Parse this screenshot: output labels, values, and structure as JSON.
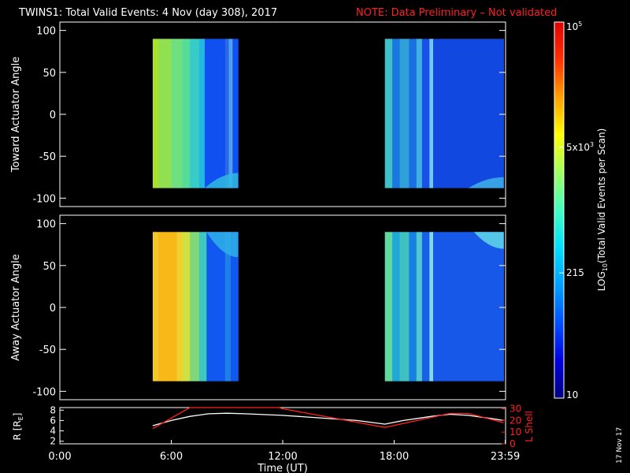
{
  "title": {
    "main": "TWINS1: Total Valid Events:  4 Nov (day 308), 2017",
    "note": "NOTE: Data Preliminary – Not validated",
    "note_color": "#ff2020"
  },
  "date_stamp": "17 Nov 17",
  "chart_data": [
    {
      "type": "heatmap",
      "ylabel": "Toward Actuator Angle",
      "ylim": [
        -110,
        110
      ],
      "yticks": [
        100,
        50,
        0,
        -50,
        -100
      ],
      "x_hours_lim": [
        0,
        24
      ],
      "y_range_data": [
        -88,
        90
      ],
      "blocks": [
        {
          "start_hour": 5.0,
          "end_hour": 9.6,
          "stripes": [
            [
              5.0,
              5.3,
              "#a8e030"
            ],
            [
              5.3,
              6.0,
              "#90e050"
            ],
            [
              6.0,
              6.6,
              "#6ee080"
            ],
            [
              6.6,
              7.0,
              "#55dc98"
            ],
            [
              7.0,
              7.5,
              "#38ccc8"
            ],
            [
              7.5,
              7.8,
              "#22b8e0"
            ],
            [
              7.8,
              8.9,
              "#1050f0"
            ],
            [
              8.9,
              9.1,
              "#2a6ae8"
            ],
            [
              9.1,
              9.3,
              "#50a0f0"
            ],
            [
              9.3,
              9.6,
              "#1050f0"
            ]
          ],
          "bottom_feature": {
            "from_hour": 7.8,
            "to_hour": 9.6,
            "from_deg": -70,
            "color": "#30b8e0"
          }
        },
        {
          "start_hour": 17.5,
          "end_hour": 23.9,
          "stripes": [
            [
              17.5,
              17.9,
              "#40c0c8"
            ],
            [
              17.9,
              18.3,
              "#1878e0"
            ],
            [
              18.3,
              18.8,
              "#30a0d8"
            ],
            [
              18.8,
              19.2,
              "#1a70e0"
            ],
            [
              19.2,
              19.5,
              "#40b0e0"
            ],
            [
              19.5,
              19.9,
              "#1850e8"
            ],
            [
              19.9,
              20.1,
              "#70c8f0"
            ],
            [
              20.1,
              23.9,
              "#1048e0"
            ]
          ],
          "bottom_feature": {
            "from_hour": 22.0,
            "to_hour": 23.9,
            "from_deg": -75,
            "color": "#40b0e8"
          }
        }
      ]
    },
    {
      "type": "heatmap",
      "ylabel": "Away Actuator Angle",
      "ylim": [
        -110,
        110
      ],
      "yticks": [
        100,
        50,
        0,
        -50,
        -100
      ],
      "x_hours_lim": [
        0,
        24
      ],
      "y_range_data": [
        -88,
        90
      ],
      "blocks": [
        {
          "start_hour": 5.0,
          "end_hour": 9.6,
          "stripes": [
            [
              5.0,
              5.3,
              "#f0c828"
            ],
            [
              5.3,
              6.3,
              "#f8b818"
            ],
            [
              6.3,
              6.6,
              "#f0d030"
            ],
            [
              6.6,
              7.0,
              "#d0e040"
            ],
            [
              7.0,
              7.5,
              "#80d878"
            ],
            [
              7.5,
              7.9,
              "#40c8c0"
            ],
            [
              7.9,
              8.9,
              "#1058f0"
            ],
            [
              8.9,
              9.2,
              "#2080e8"
            ],
            [
              9.2,
              9.6,
              "#1058f0"
            ]
          ],
          "top_feature": {
            "from_hour": 7.9,
            "to_hour": 9.6,
            "to_deg": 60,
            "color": "#30b0e8"
          }
        },
        {
          "start_hour": 17.5,
          "end_hour": 23.9,
          "stripes": [
            [
              17.5,
              17.9,
              "#60d8a0"
            ],
            [
              17.9,
              18.3,
              "#20a8d8"
            ],
            [
              18.3,
              18.8,
              "#40c0c0"
            ],
            [
              18.8,
              19.2,
              "#1880e0"
            ],
            [
              19.2,
              19.5,
              "#50c8d0"
            ],
            [
              19.5,
              19.9,
              "#1860e8"
            ],
            [
              19.9,
              20.1,
              "#80d8e8"
            ],
            [
              20.1,
              23.9,
              "#1858e8"
            ]
          ],
          "top_feature": {
            "from_hour": 22.3,
            "to_hour": 23.9,
            "to_deg": 70,
            "color": "#60d8e8"
          }
        }
      ]
    },
    {
      "type": "line",
      "ylabel_left": "R [R",
      "ylabel_left_sub": "E",
      "ylabel_left_end": "]",
      "ylabel_right": "L Shell",
      "ylim_left": [
        1.5,
        8.5
      ],
      "yticks_left": [
        2,
        4,
        6,
        8
      ],
      "ylim_right": [
        0,
        31
      ],
      "yticks_right": [
        0,
        10,
        20,
        30
      ],
      "xticks": [
        "0:00",
        "6:00",
        "12:00",
        "18:00",
        "23:59"
      ],
      "xtick_hours": [
        0,
        6,
        12,
        18,
        23.983
      ],
      "xlabel": "Time (UT)",
      "series": [
        {
          "axis": "left",
          "color": "#ffffff",
          "points": [
            [
              5.0,
              5.0
            ],
            [
              6.0,
              6.0
            ],
            [
              7.0,
              6.8
            ],
            [
              8.0,
              7.3
            ],
            [
              9.0,
              7.4
            ],
            [
              10.0,
              7.3
            ],
            [
              12.0,
              7.0
            ],
            [
              14.0,
              6.5
            ],
            [
              16.0,
              6.0
            ],
            [
              17.5,
              5.3
            ],
            [
              18.5,
              6.0
            ],
            [
              20.0,
              6.8
            ],
            [
              21.0,
              7.2
            ],
            [
              22.0,
              7.0
            ],
            [
              23.2,
              6.4
            ],
            [
              23.9,
              6.0
            ]
          ]
        },
        {
          "axis": "right",
          "color": "#ff2020",
          "points": [
            [
              5.0,
              13
            ],
            [
              7.0,
              31
            ],
            [
              7.2,
              31
            ],
            [
              11.8,
              31
            ],
            [
              12.0,
              30
            ],
            [
              17.5,
              14
            ],
            [
              21.0,
              26
            ],
            [
              22.0,
              26
            ],
            [
              23.9,
              18
            ]
          ]
        }
      ]
    }
  ],
  "colorbar": {
    "label": "LOG",
    "label_sub": "10",
    "label_end": "(Total Valid Events per Scan)",
    "ticks": [
      {
        "label": "10",
        "frac": 0.0
      },
      {
        "label": "215",
        "frac": 0.333
      },
      {
        "label": "5x10",
        "sup": "3",
        "frac": 0.667
      },
      {
        "label": "10",
        "sup": "5",
        "frac": 1.0
      }
    ],
    "stops": [
      "#000080",
      "#0000e0",
      "#0050ff",
      "#00a0ff",
      "#00e0ff",
      "#40ffc0",
      "#a0ff60",
      "#ffff00",
      "#ffa000",
      "#ff3000",
      "#e00000"
    ]
  }
}
